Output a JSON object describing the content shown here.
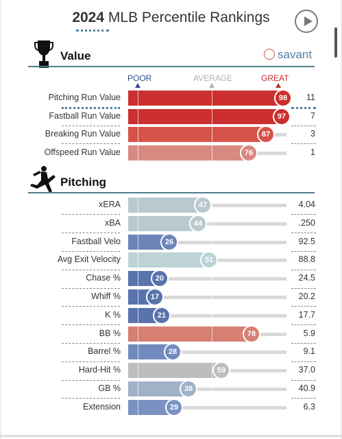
{
  "header": {
    "year": "2024",
    "title": "MLB Percentile Rankings"
  },
  "value_section": {
    "title": "Value",
    "brand": "savant"
  },
  "scale": {
    "poor": "POOR",
    "average": "AVERAGE",
    "great": "GREAT"
  },
  "pitching_section": {
    "title": "Pitching"
  },
  "icons": [
    "play-icon",
    "trophy-icon",
    "savant-baseball-icon",
    "pitcher-icon"
  ],
  "value_rows": [
    {
      "label": "Pitching Run Value",
      "percentile": "98",
      "stat": "11",
      "color": "#cc2f2f"
    },
    {
      "label": "Fastball Run Value",
      "percentile": "97",
      "stat": "7",
      "color": "#cc2f2f"
    },
    {
      "label": "Breaking Run Value",
      "percentile": "87",
      "stat": "3",
      "color": "#d6534a"
    },
    {
      "label": "Offspeed Run Value",
      "percentile": "76",
      "stat": "1",
      "color": "#d88a80"
    }
  ],
  "pitching_rows": [
    {
      "label": "xERA",
      "percentile": "47",
      "stat": "4.04",
      "color": "#b9c9cf"
    },
    {
      "label": "xBA",
      "percentile": "44",
      "stat": ".250",
      "color": "#b9c9cf"
    },
    {
      "label": "Fastball Velo",
      "percentile": "26",
      "stat": "92.5",
      "color": "#6d84b9"
    },
    {
      "label": "Avg Exit Velocity",
      "percentile": "51",
      "stat": "88.8",
      "color": "#bdd3d6"
    },
    {
      "label": "Chase %",
      "percentile": "20",
      "stat": "24.5",
      "color": "#5873ad"
    },
    {
      "label": "Whiff %",
      "percentile": "17",
      "stat": "20.2",
      "color": "#5873ad"
    },
    {
      "label": "K %",
      "percentile": "21",
      "stat": "17.7",
      "color": "#5873ad"
    },
    {
      "label": "BB %",
      "percentile": "78",
      "stat": "5.9",
      "color": "#d67f72"
    },
    {
      "label": "Barrel %",
      "percentile": "28",
      "stat": "9.1",
      "color": "#728bbe"
    },
    {
      "label": "Hard-Hit %",
      "percentile": "59",
      "stat": "37.0",
      "color": "#bdbdbd"
    },
    {
      "label": "GB %",
      "percentile": "38",
      "stat": "40.9",
      "color": "#9fb2c8"
    },
    {
      "label": "Extension",
      "percentile": "29",
      "stat": "6.3",
      "color": "#7a92c1"
    }
  ]
}
